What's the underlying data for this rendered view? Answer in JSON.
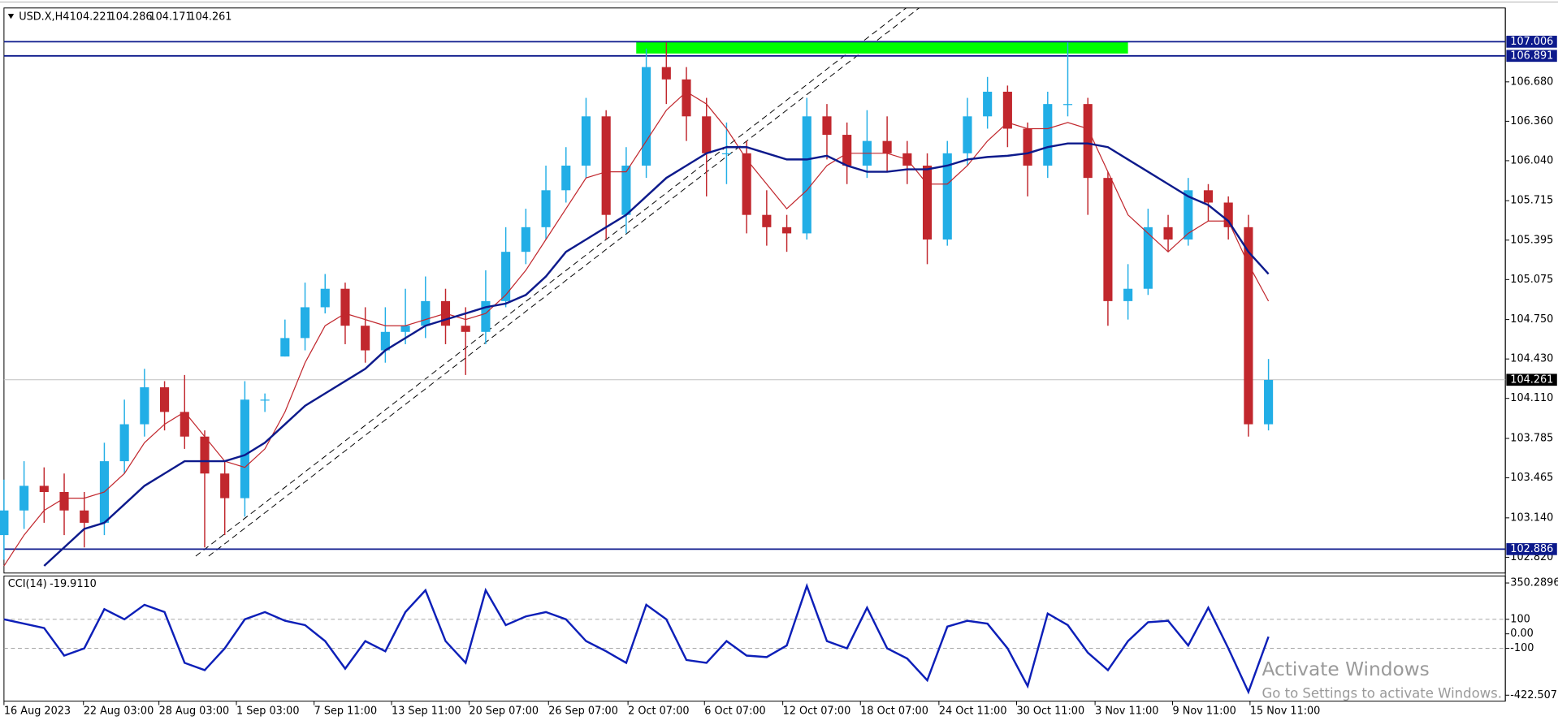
{
  "header": {
    "symbol": "USD.X,H4",
    "ohlc": [
      104.221,
      104.286,
      104.171,
      104.261
    ]
  },
  "chart_data": [
    {
      "type": "candlestick",
      "x": [
        0,
        1,
        2,
        3,
        4,
        5,
        6,
        7,
        8,
        9,
        10,
        11,
        12,
        13,
        14,
        15,
        16,
        17,
        18,
        19,
        20,
        21,
        22,
        23,
        24,
        25,
        26,
        27,
        28,
        29,
        30,
        31,
        32,
        33,
        34,
        35,
        36,
        37,
        38,
        39,
        40,
        41,
        42,
        43,
        44,
        45,
        46,
        47,
        48,
        49,
        50,
        51,
        52,
        53,
        54,
        55,
        56,
        57,
        58,
        59,
        60,
        61,
        62,
        63
      ],
      "open": [
        103.0,
        103.2,
        103.4,
        103.35,
        103.2,
        103.1,
        103.6,
        103.9,
        104.2,
        104.0,
        103.8,
        103.5,
        103.3,
        104.1,
        104.45,
        104.6,
        104.85,
        105.0,
        104.7,
        104.5,
        104.65,
        104.7,
        104.9,
        104.7,
        104.65,
        104.9,
        105.3,
        105.5,
        105.8,
        106.0,
        106.4,
        105.6,
        106.0,
        106.8,
        106.7,
        106.4,
        106.1,
        106.1,
        105.6,
        105.5,
        105.45,
        106.4,
        106.25,
        106.0,
        106.2,
        106.1,
        106.0,
        105.4,
        106.1,
        106.4,
        106.6,
        106.3,
        106.0,
        106.5,
        106.5,
        105.9,
        104.9,
        105.0,
        105.5,
        105.4,
        105.8,
        105.7,
        105.5,
        103.9
      ],
      "high": [
        103.45,
        103.6,
        103.55,
        103.5,
        103.35,
        103.75,
        104.1,
        104.35,
        104.25,
        104.3,
        103.85,
        103.6,
        104.25,
        104.15,
        104.75,
        105.05,
        105.12,
        105.05,
        104.85,
        104.85,
        105.0,
        105.1,
        105.0,
        104.85,
        105.15,
        105.5,
        105.65,
        106.0,
        106.15,
        106.55,
        106.45,
        106.15,
        106.95,
        107.0,
        106.8,
        106.55,
        106.35,
        106.2,
        105.8,
        105.6,
        106.55,
        106.5,
        106.35,
        106.45,
        106.4,
        106.2,
        106.1,
        106.2,
        106.55,
        106.72,
        106.65,
        106.35,
        106.6,
        107.0,
        106.55,
        105.95,
        105.2,
        105.65,
        105.6,
        105.9,
        105.85,
        105.75,
        105.6,
        104.43
      ],
      "low": [
        102.8,
        103.05,
        103.1,
        103.0,
        102.9,
        103.0,
        103.5,
        103.8,
        103.85,
        103.7,
        102.9,
        103.0,
        103.15,
        104.0,
        104.45,
        104.5,
        104.8,
        104.55,
        104.4,
        104.4,
        104.55,
        104.6,
        104.55,
        104.3,
        104.55,
        104.85,
        105.2,
        105.4,
        105.7,
        105.9,
        105.4,
        105.45,
        105.9,
        106.5,
        106.2,
        105.75,
        105.85,
        105.45,
        105.35,
        105.3,
        105.4,
        106.05,
        105.85,
        105.9,
        105.95,
        105.85,
        105.2,
        105.35,
        106.0,
        106.3,
        106.15,
        105.75,
        105.9,
        106.4,
        105.6,
        104.7,
        104.75,
        104.95,
        105.3,
        105.35,
        105.55,
        105.4,
        103.8,
        103.85
      ],
      "close": [
        103.2,
        103.4,
        103.35,
        103.2,
        103.1,
        103.6,
        103.9,
        104.2,
        104.0,
        103.8,
        103.5,
        103.3,
        104.1,
        104.1,
        104.6,
        104.85,
        105.0,
        104.7,
        104.5,
        104.65,
        104.7,
        104.9,
        104.7,
        104.65,
        104.9,
        105.3,
        105.5,
        105.8,
        106.0,
        106.4,
        105.6,
        106.0,
        106.8,
        106.7,
        106.4,
        106.1,
        106.1,
        105.6,
        105.5,
        105.45,
        106.4,
        106.25,
        106.0,
        106.2,
        106.1,
        106.0,
        105.4,
        106.1,
        106.4,
        106.6,
        106.3,
        106.0,
        106.5,
        106.5,
        105.9,
        104.9,
        105.0,
        105.5,
        105.4,
        105.8,
        105.7,
        105.5,
        103.9,
        104.26
      ],
      "up_color": "#22aee6",
      "down_color": "#c1272d",
      "overlays": [
        {
          "color": "#c1272d",
          "width": 1,
          "values": [
            102.75,
            103.0,
            103.2,
            103.3,
            103.3,
            103.35,
            103.5,
            103.75,
            103.9,
            104.0,
            103.8,
            103.6,
            103.55,
            103.7,
            104.0,
            104.4,
            104.7,
            104.8,
            104.75,
            104.7,
            104.7,
            104.75,
            104.8,
            104.75,
            104.8,
            104.95,
            105.15,
            105.4,
            105.65,
            105.9,
            105.95,
            105.95,
            106.2,
            106.45,
            106.6,
            106.5,
            106.3,
            106.05,
            105.85,
            105.65,
            105.8,
            106.0,
            106.1,
            106.1,
            106.1,
            106.05,
            105.85,
            105.85,
            106.0,
            106.2,
            106.35,
            106.3,
            106.3,
            106.35,
            106.3,
            105.95,
            105.6,
            105.45,
            105.3,
            105.45,
            105.55,
            105.55,
            105.2,
            104.9
          ]
        },
        {
          "color": "#0d1a8c",
          "width": 2,
          "values": [
            null,
            null,
            102.75,
            102.9,
            103.05,
            103.1,
            103.25,
            103.4,
            103.5,
            103.6,
            103.6,
            103.6,
            103.65,
            103.75,
            103.9,
            104.05,
            104.15,
            104.25,
            104.35,
            104.5,
            104.6,
            104.7,
            104.75,
            104.8,
            104.85,
            104.88,
            104.95,
            105.1,
            105.3,
            105.4,
            105.5,
            105.6,
            105.75,
            105.9,
            106.0,
            106.1,
            106.15,
            106.15,
            106.1,
            106.05,
            106.05,
            106.08,
            106.0,
            105.95,
            105.95,
            105.97,
            105.97,
            106.0,
            106.05,
            106.07,
            106.08,
            106.1,
            106.15,
            106.18,
            106.18,
            106.15,
            106.05,
            105.95,
            105.85,
            105.75,
            105.68,
            105.55,
            105.3,
            105.12
          ]
        }
      ],
      "hlines": [
        {
          "value": 107.006,
          "color": "#0d1a8c"
        },
        {
          "value": 106.891,
          "color": "#0d1a8c"
        },
        {
          "value": 102.886,
          "color": "#0d1a8c"
        }
      ],
      "last_price": 104.261,
      "zone": {
        "x": [
          31.5,
          56.0
        ],
        "y": [
          106.91,
          107.006
        ],
        "color": "#00ff00"
      },
      "xlim": [
        0,
        74.8
      ],
      "xticks": [
        {
          "value": 0,
          "label": "16 Aug 2023"
        },
        {
          "value": 3.96,
          "label": "22 Aug 03:00"
        },
        {
          "value": 7.72,
          "label": "28 Aug 03:00"
        },
        {
          "value": 11.58,
          "label": "1 Sep 03:00"
        },
        {
          "value": 15.45,
          "label": "7 Sep 11:00"
        },
        {
          "value": 19.31,
          "label": "13 Sep 11:00"
        },
        {
          "value": 23.17,
          "label": "20 Sep 07:00"
        },
        {
          "value": 27.13,
          "label": "26 Sep 07:00"
        },
        {
          "value": 31.09,
          "label": "2 Oct 07:00"
        },
        {
          "value": 34.9,
          "label": "6 Oct 07:00"
        },
        {
          "value": 38.8,
          "label": "12 Oct 07:00"
        },
        {
          "value": 42.67,
          "label": "18 Oct 07:00"
        },
        {
          "value": 46.58,
          "label": "24 Oct 11:00"
        },
        {
          "value": 50.45,
          "label": "30 Oct 11:00"
        },
        {
          "value": 54.36,
          "label": "3 Nov 11:00"
        },
        {
          "value": 58.22,
          "label": "9 Nov 11:00"
        },
        {
          "value": 62.08,
          "label": "15 Nov 11:00"
        }
      ],
      "ylim": [
        102.692,
        107.28
      ],
      "yticks": [
        {
          "value": 106.68,
          "label": "106.680"
        },
        {
          "value": 106.36,
          "label": "106.360"
        },
        {
          "value": 106.04,
          "label": "106.040"
        },
        105.715,
        105.395,
        105.075,
        {
          "value": 104.75,
          "label": "104.750"
        },
        {
          "value": 104.43,
          "label": "104.430"
        },
        {
          "value": 104.11,
          "label": "104.110"
        },
        103.785,
        103.465,
        {
          "value": 103.14,
          "label": "103.140"
        },
        {
          "value": 102.82,
          "label": "102.820"
        }
      ]
    },
    {
      "type": "line",
      "title": "CCI(14)",
      "last": {
        "value": -19.911,
        "label": "-19.9110"
      },
      "color": "#0d1fb8",
      "x": [
        0,
        1,
        2,
        3,
        4,
        5,
        6,
        7,
        8,
        9,
        10,
        11,
        12,
        13,
        14,
        15,
        16,
        17,
        18,
        19,
        20,
        21,
        22,
        23,
        24,
        25,
        26,
        27,
        28,
        29,
        30,
        31,
        32,
        33,
        34,
        35,
        36,
        37,
        38,
        39,
        40,
        41,
        42,
        43,
        44,
        45,
        46,
        47,
        48,
        49,
        50,
        51,
        52,
        53,
        54,
        55,
        56,
        57,
        58,
        59,
        60,
        61,
        62,
        63
      ],
      "values": [
        100,
        70,
        40,
        -150,
        -100,
        170,
        100,
        200,
        150,
        -200,
        -250,
        -100,
        100,
        150,
        90,
        60,
        -50,
        -240,
        -50,
        -120,
        150,
        300,
        -50,
        -200,
        300,
        60,
        120,
        150,
        100,
        -50,
        -120,
        -200,
        200,
        100,
        -180,
        -200,
        -50,
        -150,
        -160,
        -80,
        330,
        -50,
        -100,
        180,
        -100,
        -170,
        -320,
        50,
        90,
        70,
        -100,
        -360,
        140,
        60,
        -130,
        -250,
        -50,
        80,
        90,
        -80,
        180,
        -100,
        -400,
        -19.911
      ],
      "xlim": [
        0,
        74.8
      ],
      "ylim": [
        -422.507,
        350.2896
      ],
      "yticks": [
        350.2896,
        100,
        {
          "value": 0,
          "label": "0.00"
        },
        -100,
        -422.507
      ]
    }
  ],
  "watermark": {
    "title": "Activate Windows",
    "subtitle": "Go to Settings to activate Windows."
  }
}
